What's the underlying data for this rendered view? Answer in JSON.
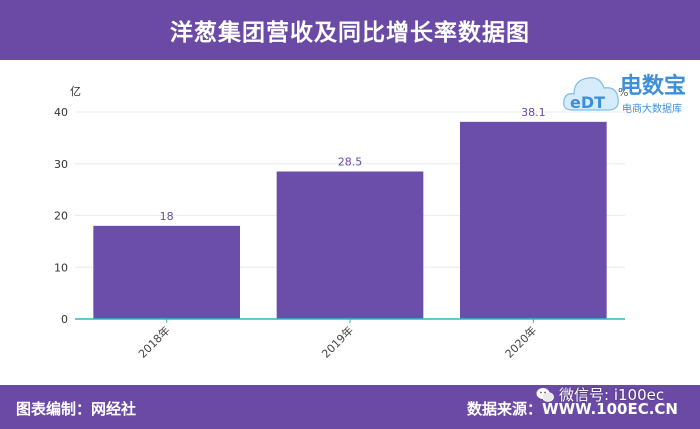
{
  "header": {
    "title": "洋葱集团营收及同比增长率数据图"
  },
  "footer": {
    "left": "图表编制：网经社",
    "right": "数据来源：WWW.100EC.CN"
  },
  "watermark": {
    "wechat": "微信号: i100ec",
    "brand": "电数宝",
    "brand_sub": "电商大数据库",
    "logo_text": "eDT"
  },
  "colors": {
    "accent": "#6a4aa5",
    "bar": "#6a4eaa",
    "axis": "#3bb3c3",
    "logo": "#3d8fd9"
  },
  "chart_data": {
    "type": "bar",
    "title": "洋葱集团营收及同比增长率数据图",
    "categories": [
      "2018年",
      "2019年",
      "2020年"
    ],
    "series": [
      {
        "values": [
          18,
          28.5,
          38.1
        ]
      }
    ],
    "ylabel": "亿",
    "y2label": "%",
    "ylim": [
      0,
      40
    ],
    "yticks": [
      0,
      10,
      20,
      30,
      40
    ],
    "grid": true,
    "legend": "none"
  }
}
